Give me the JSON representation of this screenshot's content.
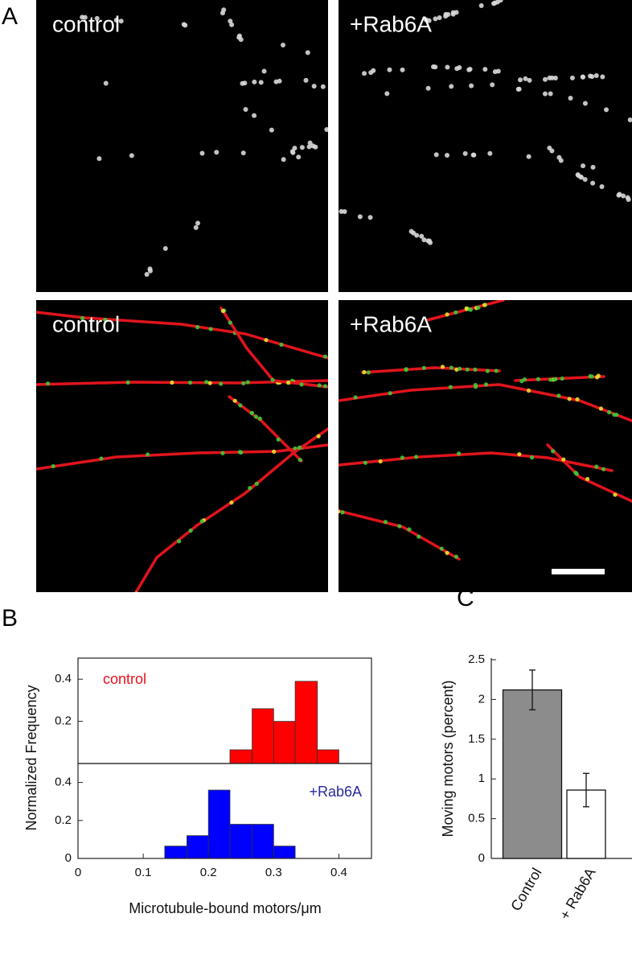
{
  "panels": {
    "letters": [
      "A",
      "B",
      "C"
    ]
  },
  "micrographs": {
    "labels": [
      "control",
      "+Rab6A",
      "control",
      "+Rab6A"
    ]
  },
  "chart_data": [
    {
      "type": "histogram",
      "series_label": "control",
      "color": "#ff0000",
      "label_color": "#e8121a",
      "bins": [
        0.233,
        0.267,
        0.3,
        0.333,
        0.367,
        0.4
      ],
      "values": [
        0.065,
        0.26,
        0.2,
        0.39,
        0.065
      ],
      "xlim": [
        0,
        0.45
      ],
      "ylim": [
        0,
        0.5
      ],
      "yticks": [
        0.2,
        0.4
      ],
      "ylabel": "Normalized Frequency"
    },
    {
      "type": "histogram",
      "series_label": "+Rab6A",
      "color": "#0000ff",
      "label_color": "#2a2a9a",
      "bins": [
        0.133,
        0.167,
        0.2,
        0.233,
        0.267,
        0.3,
        0.333
      ],
      "values": [
        0.065,
        0.12,
        0.36,
        0.18,
        0.18,
        0.065
      ],
      "xlim": [
        0,
        0.45
      ],
      "ylim": [
        0,
        0.5
      ],
      "xticks": [
        0,
        0.1,
        0.2,
        0.3,
        0.4
      ],
      "yticks": [
        0,
        0.2,
        0.4
      ],
      "xlabel": "Microtubule-bound motors/μm"
    },
    {
      "type": "bar",
      "categories": [
        "Control",
        "+ Rab6A"
      ],
      "values": [
        2.12,
        0.86
      ],
      "errors": [
        0.25,
        0.21
      ],
      "colors": [
        "#8c8c8c",
        "#ffffff"
      ],
      "ylim": [
        0,
        2.5
      ],
      "yticks": [
        0,
        0.5,
        1,
        1.5,
        2,
        2.5
      ],
      "ylabel": "Moving motors (percent)"
    }
  ]
}
